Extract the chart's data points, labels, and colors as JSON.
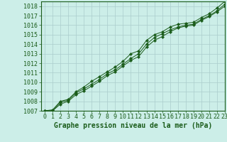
{
  "title": "Graphe pression niveau de la mer (hPa)",
  "background_color": "#cceee8",
  "grid_color": "#aacccc",
  "line_color": "#1a5c1a",
  "marker_color": "#1a5c1a",
  "xlim": [
    -0.5,
    23
  ],
  "ylim": [
    1007,
    1018.5
  ],
  "xticks": [
    0,
    1,
    2,
    3,
    4,
    5,
    6,
    7,
    8,
    9,
    10,
    11,
    12,
    13,
    14,
    15,
    16,
    17,
    18,
    19,
    20,
    21,
    22,
    23
  ],
  "yticks": [
    1007,
    1008,
    1009,
    1010,
    1011,
    1012,
    1013,
    1014,
    1015,
    1016,
    1017,
    1018
  ],
  "series": [
    [
      1007.0,
      1007.1,
      1008.0,
      1008.2,
      1009.0,
      1009.5,
      1010.1,
      1010.6,
      1011.1,
      1011.6,
      1012.2,
      1013.0,
      1013.3,
      1014.4,
      1015.0,
      1015.3,
      1015.8,
      1016.1,
      1016.2,
      1016.3,
      1016.8,
      1017.2,
      1017.8,
      1018.5
    ],
    [
      1007.0,
      1007.0,
      1007.9,
      1008.1,
      1008.9,
      1009.3,
      1009.8,
      1010.3,
      1010.9,
      1011.3,
      1011.9,
      1012.5,
      1013.0,
      1014.0,
      1014.7,
      1015.1,
      1015.5,
      1015.8,
      1016.0,
      1016.1,
      1016.6,
      1017.0,
      1017.5,
      1018.2
    ],
    [
      1007.0,
      1007.0,
      1007.7,
      1008.0,
      1008.7,
      1009.1,
      1009.6,
      1010.1,
      1010.7,
      1011.1,
      1011.7,
      1012.3,
      1012.7,
      1013.7,
      1014.4,
      1014.8,
      1015.3,
      1015.7,
      1015.9,
      1016.0,
      1016.5,
      1016.9,
      1017.4,
      1018.0
    ]
  ],
  "tick_fontsize": 6,
  "title_fontsize": 7
}
